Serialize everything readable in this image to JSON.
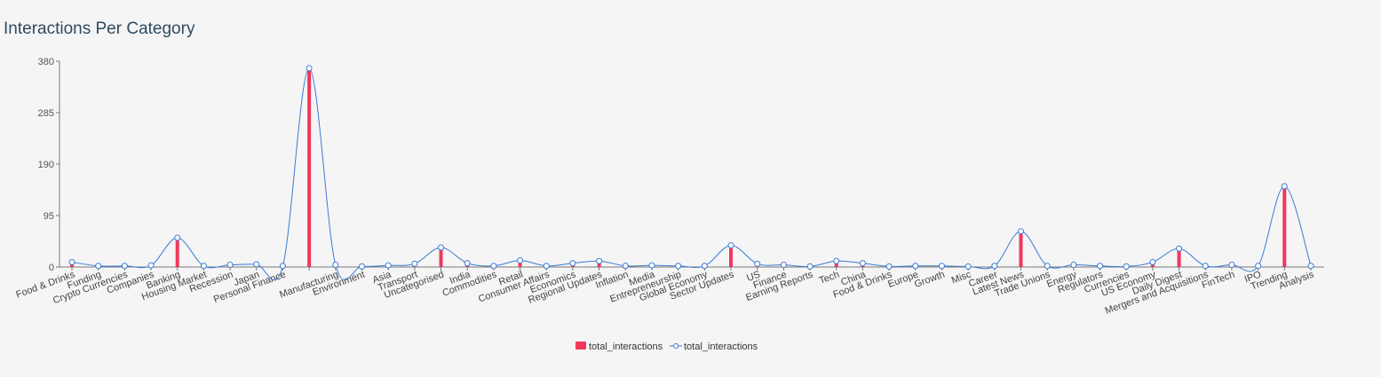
{
  "chart_title": "Interactions Per Category",
  "chart_data": {
    "type": "bar",
    "title": "Interactions Per Category",
    "xlabel": "",
    "ylabel": "",
    "ylim": [
      0,
      380
    ],
    "yticks": [
      0,
      95,
      190,
      285,
      380
    ],
    "categories": [
      "Food & Drinks",
      "Funding",
      "Crypto Currencies",
      "Companies",
      "Banking",
      "Housing Market",
      "Recession",
      "Japan",
      "Personal Finance",
      "",
      "Manufacturing",
      "Environment",
      "Asia",
      "Transport",
      "Uncategorised",
      "India",
      "Commodities",
      "Retail",
      "Consumer Affairs",
      "Economics",
      "Regional Updates",
      "Inflation",
      "Media",
      "Entrepreneurship",
      "Global Economy",
      "Sector Updates",
      "US",
      "Finance",
      "Earning Reports",
      "Tech",
      "China",
      "Food & Drinks",
      "Europe",
      "Growth",
      "Misc",
      "Career",
      "Latest News",
      "Trade Unions",
      "Energy",
      "Regulators",
      "Currencies",
      "US Economy",
      "Daily Digest",
      "Mergers and Acquisitions",
      "FinTech",
      "IPO",
      "Trending",
      "Analysis"
    ],
    "series": [
      {
        "name": "total_interactions",
        "type": "bar",
        "color": "#f2365c",
        "values": [
          9,
          2,
          2,
          3,
          54,
          2,
          4,
          5,
          2,
          367,
          4,
          1,
          3,
          6,
          36,
          7,
          2,
          12,
          2,
          7,
          11,
          2,
          3,
          2,
          2,
          40,
          6,
          4,
          1,
          11,
          7,
          1,
          2,
          2,
          1,
          2,
          66,
          2,
          4,
          2,
          1,
          9,
          34,
          2,
          4,
          2,
          149,
          2
        ]
      },
      {
        "name": "total_interactions",
        "type": "line",
        "color": "#3a7bd5",
        "values": [
          9,
          2,
          2,
          3,
          54,
          2,
          4,
          5,
          2,
          367,
          4,
          1,
          3,
          6,
          36,
          7,
          2,
          12,
          2,
          7,
          11,
          2,
          3,
          2,
          2,
          40,
          6,
          4,
          1,
          11,
          7,
          1,
          2,
          2,
          1,
          2,
          66,
          2,
          4,
          2,
          1,
          9,
          34,
          2,
          4,
          2,
          149,
          2
        ]
      }
    ],
    "grid": false,
    "legend_position": "bottom-center"
  }
}
